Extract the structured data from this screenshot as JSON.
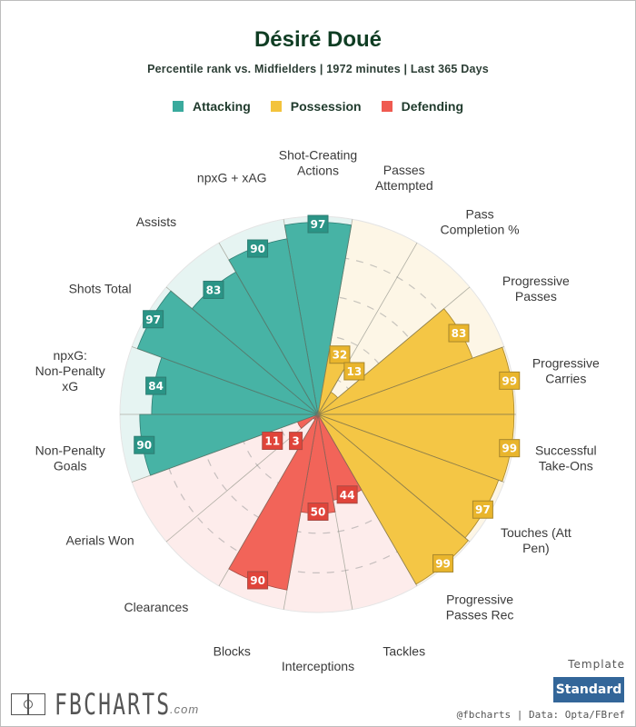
{
  "header": {
    "title": "Désiré Doué",
    "subtitle": "Percentile rank vs. Midfielders | 1972 minutes | Last 365 Days"
  },
  "legend": [
    {
      "label": "Attacking",
      "color": "#3aaa9d"
    },
    {
      "label": "Possession",
      "color": "#f3c33c"
    },
    {
      "label": "Defending",
      "color": "#ef5a50"
    }
  ],
  "colors": {
    "Attacking": {
      "fill": "#47b3a5",
      "bg": "#e6f4f2",
      "box": "#2a9486",
      "stroke": "#2f7d73"
    },
    "Possession": {
      "fill": "#f4c645",
      "bg": "#fdf6e6",
      "box": "#e9b52c",
      "stroke": "#a8872c"
    },
    "Defending": {
      "fill": "#f26459",
      "bg": "#fdeceb",
      "box": "#e0443a",
      "stroke": "#a94a43"
    }
  },
  "chart_data": {
    "type": "pie",
    "subtype": "polar-area",
    "title": "Désiré Doué",
    "subtitle": "Percentile rank vs. Midfielders | 1972 minutes | Last 365 Days",
    "rlim": [
      0,
      100
    ],
    "gridlines": [
      20,
      40,
      60,
      80
    ],
    "legend_position": "top-center",
    "start": "top",
    "direction": "clockwise",
    "categories": [
      {
        "label": "Shot-Creating Actions",
        "value": 97,
        "group": "Attacking"
      },
      {
        "label": "Passes Attempted",
        "value": 32,
        "group": "Possession"
      },
      {
        "label": "Pass Completion %",
        "value": 13,
        "group": "Possession"
      },
      {
        "label": "Progressive Passes",
        "value": 83,
        "group": "Possession"
      },
      {
        "label": "Progressive Carries",
        "value": 99,
        "group": "Possession"
      },
      {
        "label": "Successful Take-Ons",
        "value": 99,
        "group": "Possession"
      },
      {
        "label": "Touches (Att Pen)",
        "value": 97,
        "group": "Possession"
      },
      {
        "label": "Progressive Passes Rec",
        "value": 99,
        "group": "Possession"
      },
      {
        "label": "Tackles",
        "value": 44,
        "group": "Defending"
      },
      {
        "label": "Interceptions",
        "value": 50,
        "group": "Defending"
      },
      {
        "label": "Blocks",
        "value": 90,
        "group": "Defending"
      },
      {
        "label": "Clearances",
        "value": 3,
        "group": "Defending"
      },
      {
        "label": "Aerials Won",
        "value": 11,
        "group": "Defending"
      },
      {
        "label": "Non-Penalty Goals",
        "value": 90,
        "group": "Attacking"
      },
      {
        "label": "npxG: Non-Penalty xG",
        "value": 84,
        "group": "Attacking"
      },
      {
        "label": "Shots Total",
        "value": 97,
        "group": "Attacking"
      },
      {
        "label": "Assists",
        "value": 83,
        "group": "Attacking"
      },
      {
        "label": "npxG + xAG",
        "value": 90,
        "group": "Attacking"
      }
    ]
  },
  "footer": {
    "logo_text": "FBCHARTS",
    "logo_suffix": ".com",
    "template_label": "Template",
    "template_button": "Standard",
    "credit": "@fbcharts | Data: Opta/FBref"
  }
}
